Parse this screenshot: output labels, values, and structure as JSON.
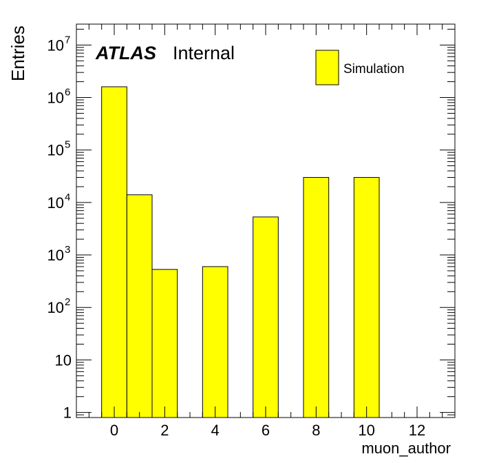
{
  "chart_data": {
    "type": "bar",
    "xlabel": "muon_author",
    "ylabel": "Entries",
    "xlim": [
      -1.5,
      13.5
    ],
    "ylim": [
      0.8,
      25000000
    ],
    "log_y": true,
    "bin_width": 1,
    "bins": [
      {
        "center": 0,
        "value": 1600000
      },
      {
        "center": 1,
        "value": 14000
      },
      {
        "center": 2,
        "value": 530
      },
      {
        "center": 4,
        "value": 600
      },
      {
        "center": 6,
        "value": 5300
      },
      {
        "center": 8,
        "value": 30000
      },
      {
        "center": 10,
        "value": 30000
      }
    ],
    "x_ticks": [
      {
        "value": 0,
        "label": "0"
      },
      {
        "value": 2,
        "label": "2"
      },
      {
        "value": 4,
        "label": "4"
      },
      {
        "value": 6,
        "label": "6"
      },
      {
        "value": 8,
        "label": "8"
      },
      {
        "value": 10,
        "label": "10"
      },
      {
        "value": 12,
        "label": "12"
      }
    ],
    "y_ticks": [
      {
        "value": 1,
        "base": "1",
        "exp": ""
      },
      {
        "value": 10,
        "base": "10",
        "exp": ""
      },
      {
        "value": 100,
        "base": "10",
        "exp": "2"
      },
      {
        "value": 1000,
        "base": "10",
        "exp": "3"
      },
      {
        "value": 10000,
        "base": "10",
        "exp": "4"
      },
      {
        "value": 100000,
        "base": "10",
        "exp": "5"
      },
      {
        "value": 1000000,
        "base": "10",
        "exp": "6"
      },
      {
        "value": 10000000,
        "base": "10",
        "exp": "7"
      }
    ],
    "legend": {
      "label": "Simulation",
      "placement": "top-right"
    },
    "annotation": {
      "experiment": "ATLAS",
      "status": "Internal"
    },
    "fill_color": "#ffff00",
    "line_color": "#000000",
    "grid": false
  }
}
